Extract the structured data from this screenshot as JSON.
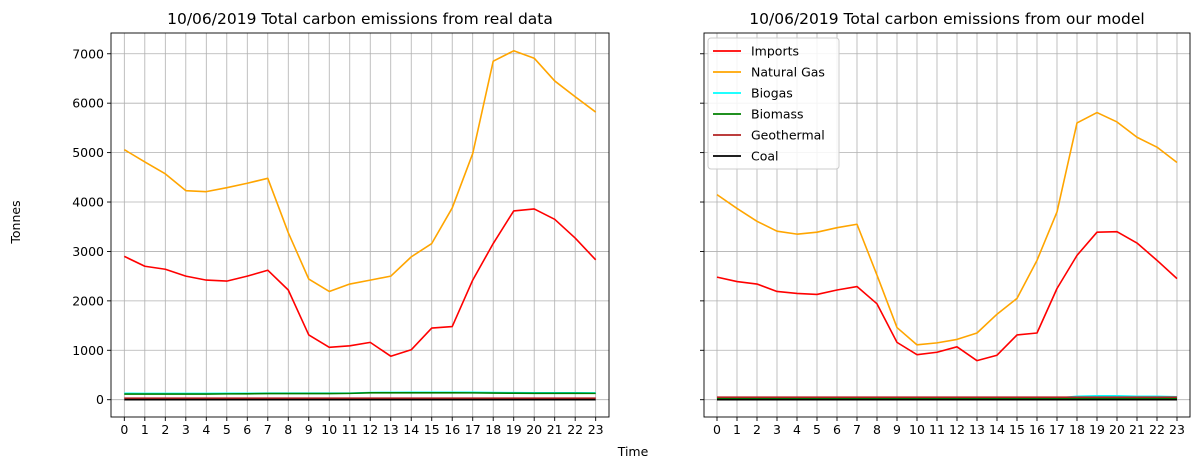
{
  "figure": {
    "ylabel": "Tonnes",
    "xlabel": "Time"
  },
  "chart_data": [
    {
      "type": "line",
      "title": "10/06/2019 Total carbon emissions from real data",
      "xlabel": "Time",
      "ylabel": "Tonnes",
      "x": [
        0,
        1,
        2,
        3,
        4,
        5,
        6,
        7,
        8,
        9,
        10,
        11,
        12,
        13,
        14,
        15,
        16,
        17,
        18,
        19,
        20,
        21,
        22,
        23
      ],
      "xticks": [
        "0",
        "1",
        "2",
        "3",
        "4",
        "5",
        "6",
        "7",
        "8",
        "9",
        "10",
        "11",
        "12",
        "13",
        "14",
        "15",
        "16",
        "17",
        "18",
        "19",
        "20",
        "21",
        "22",
        "23"
      ],
      "yticks": [
        0,
        1000,
        2000,
        3000,
        4000,
        5000,
        6000,
        7000
      ],
      "ylim": [
        -350,
        7420
      ],
      "grid": true,
      "series": [
        {
          "name": "Imports",
          "color": "#ff0000",
          "values": [
            2900,
            2700,
            2640,
            2500,
            2420,
            2400,
            2500,
            2620,
            2220,
            1310,
            1060,
            1090,
            1160,
            880,
            1010,
            1450,
            1480,
            2420,
            3160,
            3820,
            3860,
            3650,
            3270,
            2830
          ]
        },
        {
          "name": "Natural Gas",
          "color": "#ffa500",
          "values": [
            5060,
            4810,
            4570,
            4230,
            4210,
            4290,
            4380,
            4480,
            3380,
            2440,
            2190,
            2340,
            2420,
            2500,
            2890,
            3160,
            3880,
            4980,
            6850,
            7060,
            6910,
            6450,
            6130,
            5820
          ]
        },
        {
          "name": "Biogas",
          "color": "#00ffff",
          "values": [
            130,
            128,
            128,
            128,
            128,
            130,
            130,
            132,
            132,
            132,
            132,
            132,
            145,
            148,
            150,
            150,
            150,
            150,
            145,
            142,
            140,
            140,
            140,
            138
          ]
        },
        {
          "name": "Biomass",
          "color": "#008000",
          "values": [
            115,
            115,
            115,
            115,
            115,
            118,
            120,
            125,
            125,
            125,
            125,
            128,
            140,
            140,
            140,
            140,
            140,
            138,
            135,
            132,
            130,
            130,
            130,
            128
          ]
        },
        {
          "name": "Geothermal",
          "color": "#b22222",
          "values": [
            30,
            30,
            30,
            30,
            30,
            30,
            30,
            30,
            30,
            30,
            30,
            30,
            30,
            30,
            30,
            30,
            30,
            30,
            30,
            30,
            30,
            30,
            30,
            30
          ]
        },
        {
          "name": "Coal",
          "color": "#000000",
          "values": [
            0,
            0,
            0,
            0,
            0,
            0,
            0,
            0,
            0,
            0,
            0,
            0,
            0,
            0,
            0,
            0,
            0,
            0,
            0,
            0,
            0,
            0,
            0,
            0
          ]
        }
      ]
    },
    {
      "type": "line",
      "title": "10/06/2019 Total carbon emissions from our model",
      "xlabel": "Time",
      "ylabel": "Tonnes",
      "x": [
        0,
        1,
        2,
        3,
        4,
        5,
        6,
        7,
        8,
        9,
        10,
        11,
        12,
        13,
        14,
        15,
        16,
        17,
        18,
        19,
        20,
        21,
        22,
        23
      ],
      "xticks": [
        "0",
        "1",
        "2",
        "3",
        "4",
        "5",
        "6",
        "7",
        "8",
        "9",
        "10",
        "11",
        "12",
        "13",
        "14",
        "15",
        "16",
        "17",
        "18",
        "19",
        "20",
        "21",
        "22",
        "23"
      ],
      "ylim": [
        -350,
        7420
      ],
      "grid": true,
      "legend": "upper left",
      "series": [
        {
          "name": "Imports",
          "color": "#ff0000",
          "values": [
            2480,
            2390,
            2340,
            2190,
            2150,
            2130,
            2220,
            2290,
            1940,
            1160,
            910,
            960,
            1070,
            790,
            900,
            1310,
            1350,
            2250,
            2920,
            3390,
            3400,
            3170,
            2820,
            2450
          ]
        },
        {
          "name": "Natural Gas",
          "color": "#ffa500",
          "values": [
            4150,
            3870,
            3610,
            3410,
            3350,
            3390,
            3480,
            3550,
            2520,
            1460,
            1110,
            1150,
            1220,
            1350,
            1730,
            2050,
            2820,
            3800,
            5600,
            5810,
            5620,
            5310,
            5110,
            4800
          ]
        },
        {
          "name": "Biogas",
          "color": "#00ffff",
          "values": [
            30,
            30,
            30,
            30,
            30,
            30,
            30,
            30,
            30,
            30,
            30,
            30,
            30,
            30,
            30,
            30,
            30,
            30,
            70,
            80,
            80,
            70,
            70,
            60
          ]
        },
        {
          "name": "Biomass",
          "color": "#008000",
          "values": [
            20,
            20,
            20,
            20,
            20,
            20,
            20,
            20,
            20,
            20,
            20,
            20,
            20,
            20,
            20,
            20,
            20,
            20,
            20,
            20,
            20,
            20,
            20,
            20
          ]
        },
        {
          "name": "Geothermal",
          "color": "#b22222",
          "values": [
            50,
            50,
            50,
            50,
            50,
            50,
            50,
            50,
            50,
            50,
            50,
            50,
            50,
            50,
            50,
            50,
            50,
            50,
            50,
            50,
            50,
            50,
            50,
            50
          ]
        },
        {
          "name": "Coal",
          "color": "#000000",
          "values": [
            0,
            0,
            0,
            0,
            0,
            0,
            0,
            0,
            0,
            0,
            0,
            0,
            0,
            0,
            0,
            0,
            0,
            0,
            0,
            0,
            0,
            0,
            0,
            0
          ]
        }
      ]
    }
  ]
}
